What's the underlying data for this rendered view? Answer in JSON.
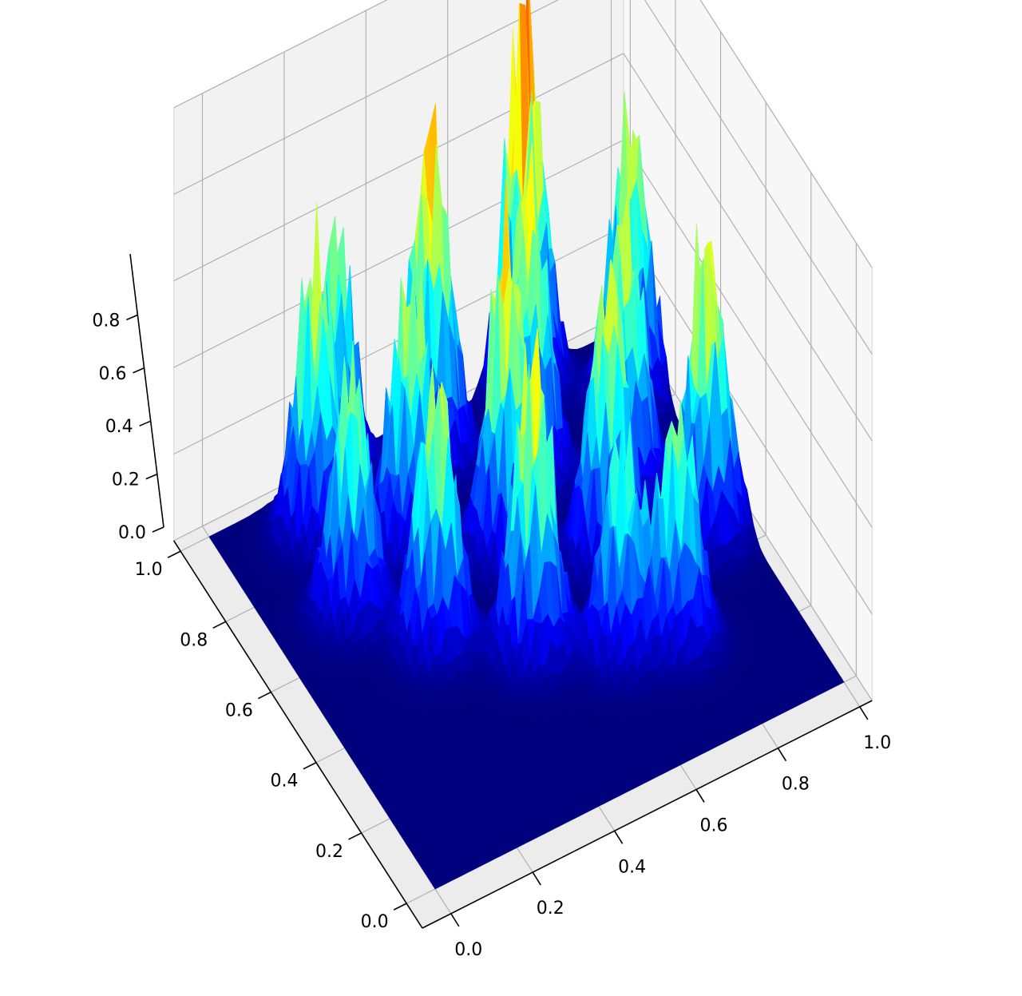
{
  "chart_data": {
    "type": "surface3d",
    "colormap": "jet",
    "colormap_stops": [
      "#00007f",
      "#0000ff",
      "#007fff",
      "#00ffff",
      "#7fff7f",
      "#ffff00",
      "#ff7f00",
      "#ff0000",
      "#7f0000"
    ],
    "pane_color": "#f2f2f2",
    "grid": true,
    "x_axis": {
      "range": [
        0.0,
        1.0
      ],
      "ticks": [
        0.0,
        0.2,
        0.4,
        0.6,
        0.8,
        1.0
      ],
      "tick_labels": [
        "0.0",
        "0.2",
        "0.4",
        "0.6",
        "0.8",
        "1.0"
      ]
    },
    "y_axis": {
      "range": [
        0.0,
        1.0
      ],
      "ticks": [
        0.0,
        0.2,
        0.4,
        0.6,
        0.8,
        1.0
      ],
      "tick_labels": [
        "0.0",
        "0.2",
        "0.4",
        "0.6",
        "0.8",
        "1.0"
      ]
    },
    "z_axis": {
      "range": [
        0.0,
        1.0
      ],
      "ticks": [
        0.0,
        0.2,
        0.4,
        0.6,
        0.8
      ],
      "tick_labels": [
        "0.0",
        "0.2",
        "0.4",
        "0.6",
        "0.8"
      ]
    },
    "peaks": [
      {
        "x": 0.17,
        "y": 0.68,
        "z": 0.63
      },
      {
        "x": 0.29,
        "y": 0.52,
        "z": 0.71
      },
      {
        "x": 0.46,
        "y": 0.4,
        "z": 0.76
      },
      {
        "x": 0.62,
        "y": 0.3,
        "z": 0.52
      },
      {
        "x": 0.2,
        "y": 0.89,
        "z": 0.72
      },
      {
        "x": 0.36,
        "y": 0.76,
        "z": 0.7
      },
      {
        "x": 0.53,
        "y": 0.64,
        "z": 0.79
      },
      {
        "x": 0.71,
        "y": 0.52,
        "z": 0.74
      },
      {
        "x": 0.3,
        "y": 1.0,
        "z": 0.67
      },
      {
        "x": 0.5,
        "y": 0.92,
        "z": 0.84
      },
      {
        "x": 0.66,
        "y": 0.78,
        "z": 0.76
      },
      {
        "x": 0.82,
        "y": 0.64,
        "z": 0.72
      },
      {
        "x": 0.92,
        "y": 0.46,
        "z": 0.78
      },
      {
        "x": 0.76,
        "y": 0.98,
        "z": 0.95
      },
      {
        "x": 0.94,
        "y": 0.84,
        "z": 0.7
      },
      {
        "x": 0.74,
        "y": 0.26,
        "z": 0.59
      }
    ]
  }
}
